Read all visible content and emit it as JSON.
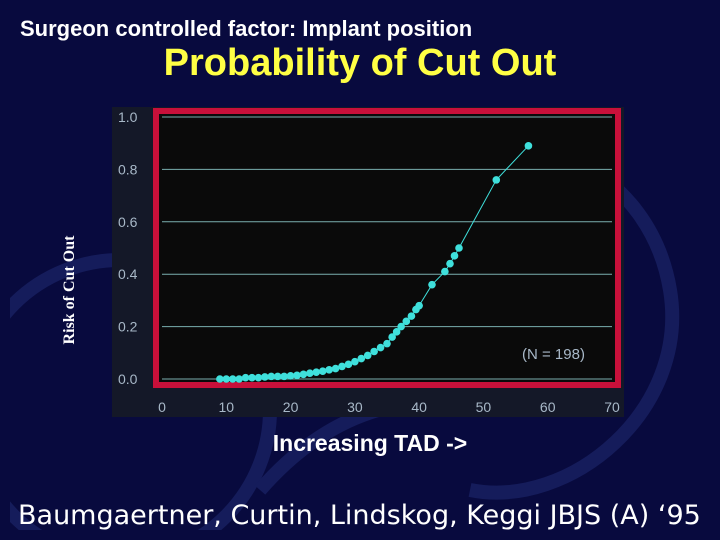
{
  "slide": {
    "subtitle": "Surgeon controlled factor: Implant position",
    "citation": "Baumgaertner, Curtin, Lindskog, Keggi JBJS (A)  ‘95"
  },
  "colors": {
    "background": "#080a3e",
    "title": "#ffff44",
    "plot_background": "#0a0a0a",
    "plot_frame": "#c8103a",
    "data": "#3fe0dc",
    "gridline": "#9fe6e6",
    "tick_text": "#a8b8c8"
  },
  "chart_data": {
    "type": "scatter",
    "title": "Probability of Cut Out",
    "xlabel": "Increasing TAD ->",
    "ylabel": "Risk of Cut Out",
    "annotation": "(N = 198)",
    "xlim": [
      0,
      70
    ],
    "ylim": [
      0,
      1
    ],
    "xticks": [
      "0",
      "10",
      "20",
      "30",
      "40",
      "50",
      "60",
      "70"
    ],
    "yticks": [
      "0.0",
      "0.2",
      "0.4",
      "0.6",
      "0.8",
      "1.0"
    ],
    "grid": true,
    "series": [
      {
        "x": [
          9,
          10,
          11,
          12,
          13,
          14,
          15,
          16,
          17,
          18,
          19,
          20,
          21,
          22,
          23,
          24,
          25,
          26,
          27,
          28,
          29,
          30,
          31,
          32,
          33,
          34,
          35,
          35.8,
          36.5,
          37.2,
          38,
          38.8,
          39.5,
          40,
          42,
          44,
          44.8,
          45.5,
          46.2,
          52,
          57
        ],
        "y": [
          0.0,
          0.0,
          0.0,
          0.0,
          0.005,
          0.005,
          0.005,
          0.008,
          0.01,
          0.01,
          0.01,
          0.012,
          0.014,
          0.018,
          0.022,
          0.026,
          0.03,
          0.035,
          0.04,
          0.048,
          0.056,
          0.066,
          0.078,
          0.09,
          0.105,
          0.12,
          0.135,
          0.16,
          0.18,
          0.2,
          0.22,
          0.24,
          0.265,
          0.28,
          0.36,
          0.41,
          0.44,
          0.47,
          0.5,
          0.76,
          0.89
        ]
      }
    ]
  }
}
